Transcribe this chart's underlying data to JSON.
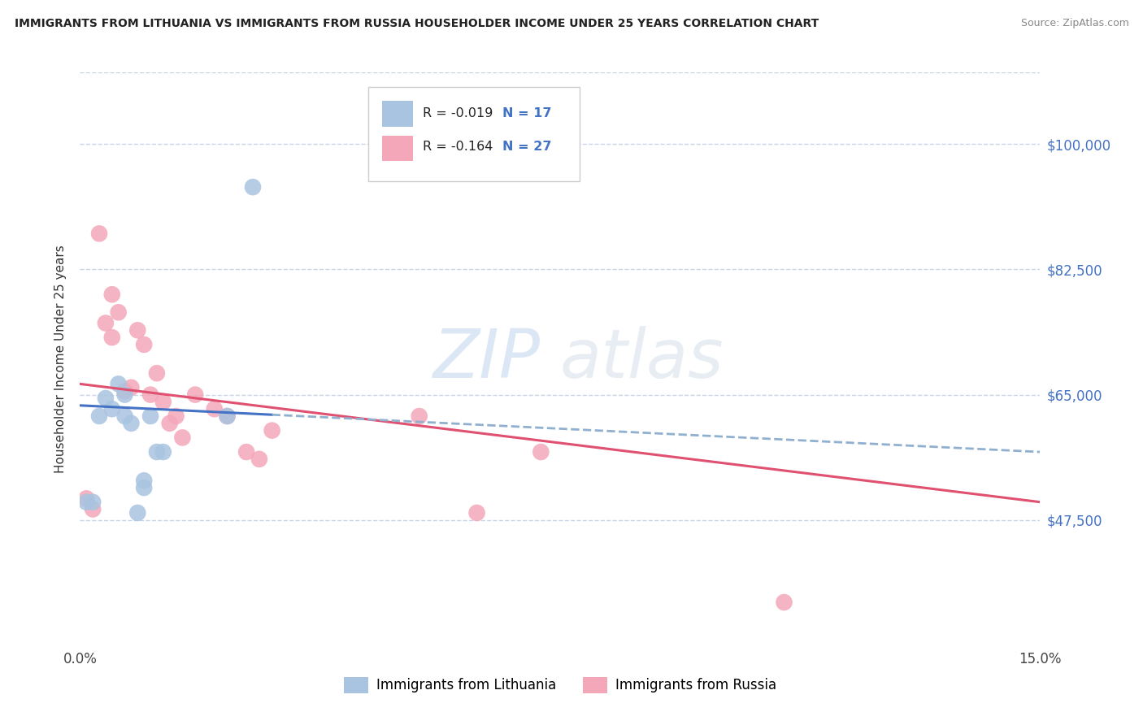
{
  "title": "IMMIGRANTS FROM LITHUANIA VS IMMIGRANTS FROM RUSSIA HOUSEHOLDER INCOME UNDER 25 YEARS CORRELATION CHART",
  "source": "Source: ZipAtlas.com",
  "ylabel": "Householder Income Under 25 years",
  "xlim": [
    0.0,
    0.15
  ],
  "ylim": [
    30000,
    110000
  ],
  "yticks": [
    47500,
    65000,
    82500,
    100000
  ],
  "ytick_labels": [
    "$47,500",
    "$65,000",
    "$82,500",
    "$100,000"
  ],
  "xticks": [
    0.0,
    0.03,
    0.06,
    0.09,
    0.12,
    0.15
  ],
  "xtick_labels": [
    "0.0%",
    "",
    "",
    "",
    "",
    "15.0%"
  ],
  "lithuania_color": "#a8c4e0",
  "russia_color": "#f4a7b9",
  "trendline_russia_color": "#e05070",
  "trendline_dashed_color": "#90b0d0",
  "trendline_solid_color": "#4472c4",
  "legend_R_lith": "-0.019",
  "legend_N_lith": "17",
  "legend_R_russ": "-0.164",
  "legend_N_russ": "27",
  "watermark_zip": "ZIP",
  "watermark_atlas": "atlas",
  "background_color": "#ffffff",
  "grid_color": "#c8d4e8",
  "lith_trend_x0": 0.0,
  "lith_trend_y0": 63500,
  "lith_trend_x1": 0.15,
  "lith_trend_y1": 57000,
  "russ_trend_x0": 0.0,
  "russ_trend_y0": 66500,
  "russ_trend_x1": 0.15,
  "russ_trend_y1": 50000,
  "lithuania_x": [
    0.001,
    0.002,
    0.003,
    0.004,
    0.005,
    0.006,
    0.007,
    0.007,
    0.008,
    0.009,
    0.01,
    0.01,
    0.011,
    0.012,
    0.013,
    0.023,
    0.027
  ],
  "lithuania_y": [
    50000,
    50000,
    62000,
    64500,
    63000,
    66500,
    65000,
    62000,
    61000,
    48500,
    52000,
    53000,
    62000,
    57000,
    57000,
    62000,
    94000
  ],
  "russia_x": [
    0.001,
    0.002,
    0.003,
    0.004,
    0.005,
    0.005,
    0.006,
    0.007,
    0.008,
    0.009,
    0.01,
    0.011,
    0.012,
    0.013,
    0.014,
    0.015,
    0.016,
    0.018,
    0.021,
    0.023,
    0.026,
    0.028,
    0.03,
    0.053,
    0.062,
    0.072,
    0.11
  ],
  "russia_y": [
    50500,
    49000,
    87500,
    75000,
    79000,
    73000,
    76500,
    65500,
    66000,
    74000,
    72000,
    65000,
    68000,
    64000,
    61000,
    62000,
    59000,
    65000,
    63000,
    62000,
    57000,
    56000,
    60000,
    62000,
    48500,
    57000,
    36000
  ]
}
